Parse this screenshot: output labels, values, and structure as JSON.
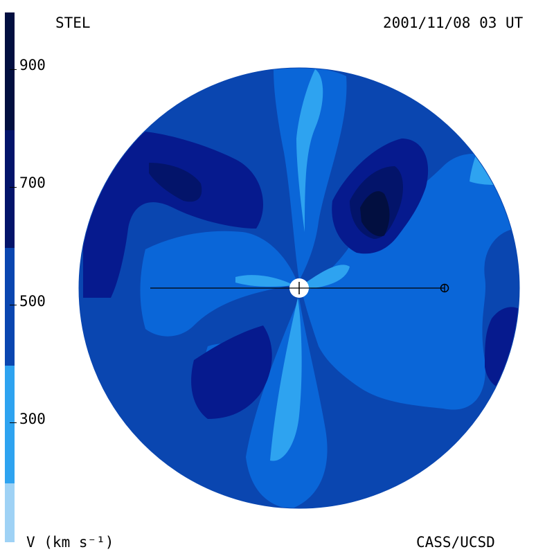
{
  "header": {
    "left_title": "STEL",
    "right_title": "2001/11/08 03 UT"
  },
  "footer": {
    "left_label": "V (km s⁻¹)",
    "right_label": "CASS/UCSD"
  },
  "colorbar": {
    "ticks": [
      "900",
      "700",
      "500",
      "300"
    ],
    "bands": [
      {
        "color": "#9fd2f5"
      },
      {
        "color": "#2ea3f0"
      },
      {
        "color": "#0a66d8"
      },
      {
        "color": "#0a46b0"
      },
      {
        "color": "#061a8e"
      },
      {
        "color": "#03146a"
      },
      {
        "color": "#020f40"
      }
    ]
  },
  "map": {
    "background_color": "#0a46b0",
    "colors": {
      "slow": "#2ea3f0",
      "medium": "#0a66d8",
      "base": "#0a46b0",
      "fast": "#061a8e",
      "very_fast": "#03146a",
      "fastest": "#020f40"
    }
  }
}
